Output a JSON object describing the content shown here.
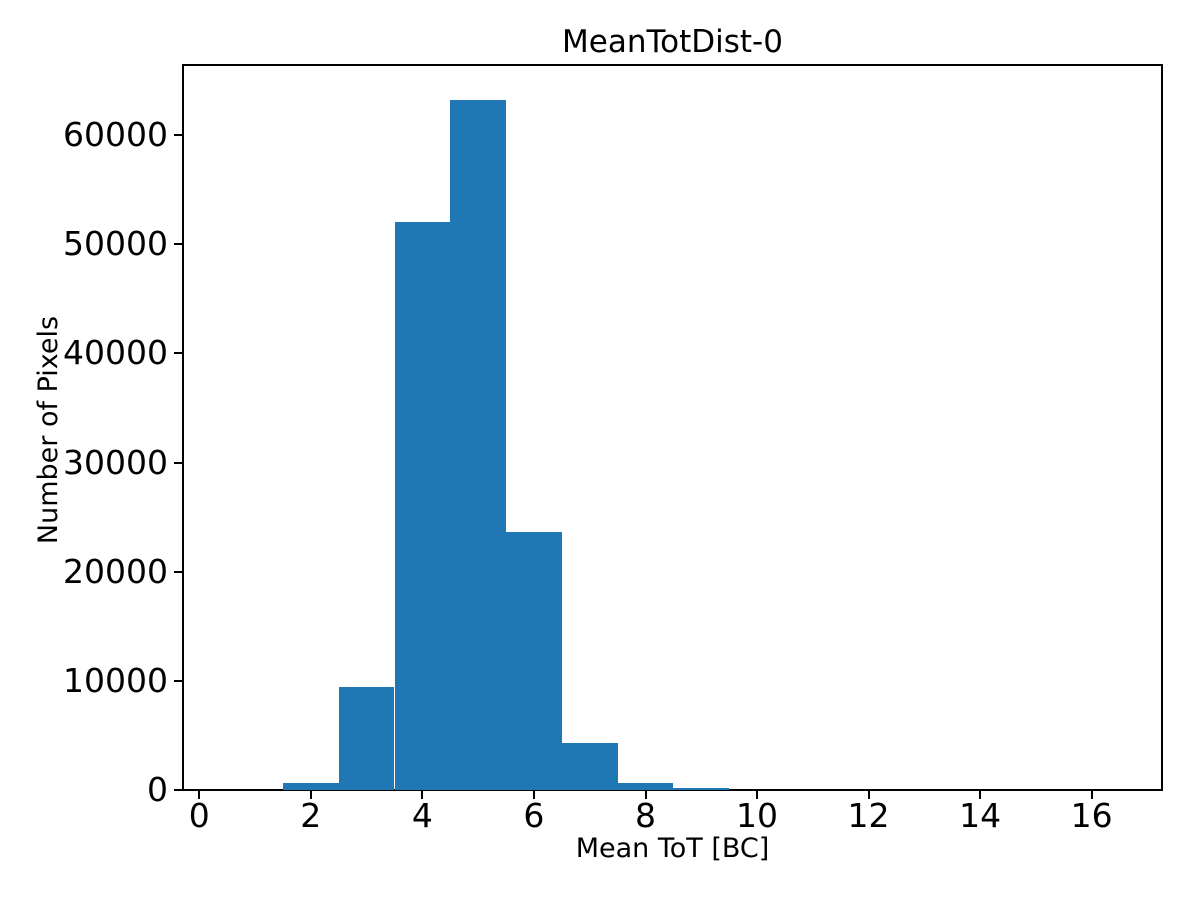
{
  "chart_data": {
    "type": "bar",
    "subtype": "histogram",
    "title": "MeanTotDist-0",
    "xlabel": "Mean ToT [BC]",
    "ylabel": "Number of Pixels",
    "bar_color": "#1f77b4",
    "spine_color": "#000000",
    "grid": false,
    "legend": null,
    "bin_edges": [
      1.5,
      2.5,
      3.5,
      4.5,
      5.5,
      6.5,
      7.5,
      8.5,
      9.5
    ],
    "counts": [
      600,
      9400,
      52000,
      63200,
      23600,
      4350,
      600,
      150
    ],
    "xticks": [
      0,
      2,
      4,
      6,
      8,
      10,
      12,
      14,
      16
    ],
    "yticks": [
      0,
      10000,
      20000,
      30000,
      40000,
      50000,
      60000
    ],
    "xlim": [
      -0.31,
      17.28
    ],
    "ylim": [
      0,
      66500
    ]
  }
}
